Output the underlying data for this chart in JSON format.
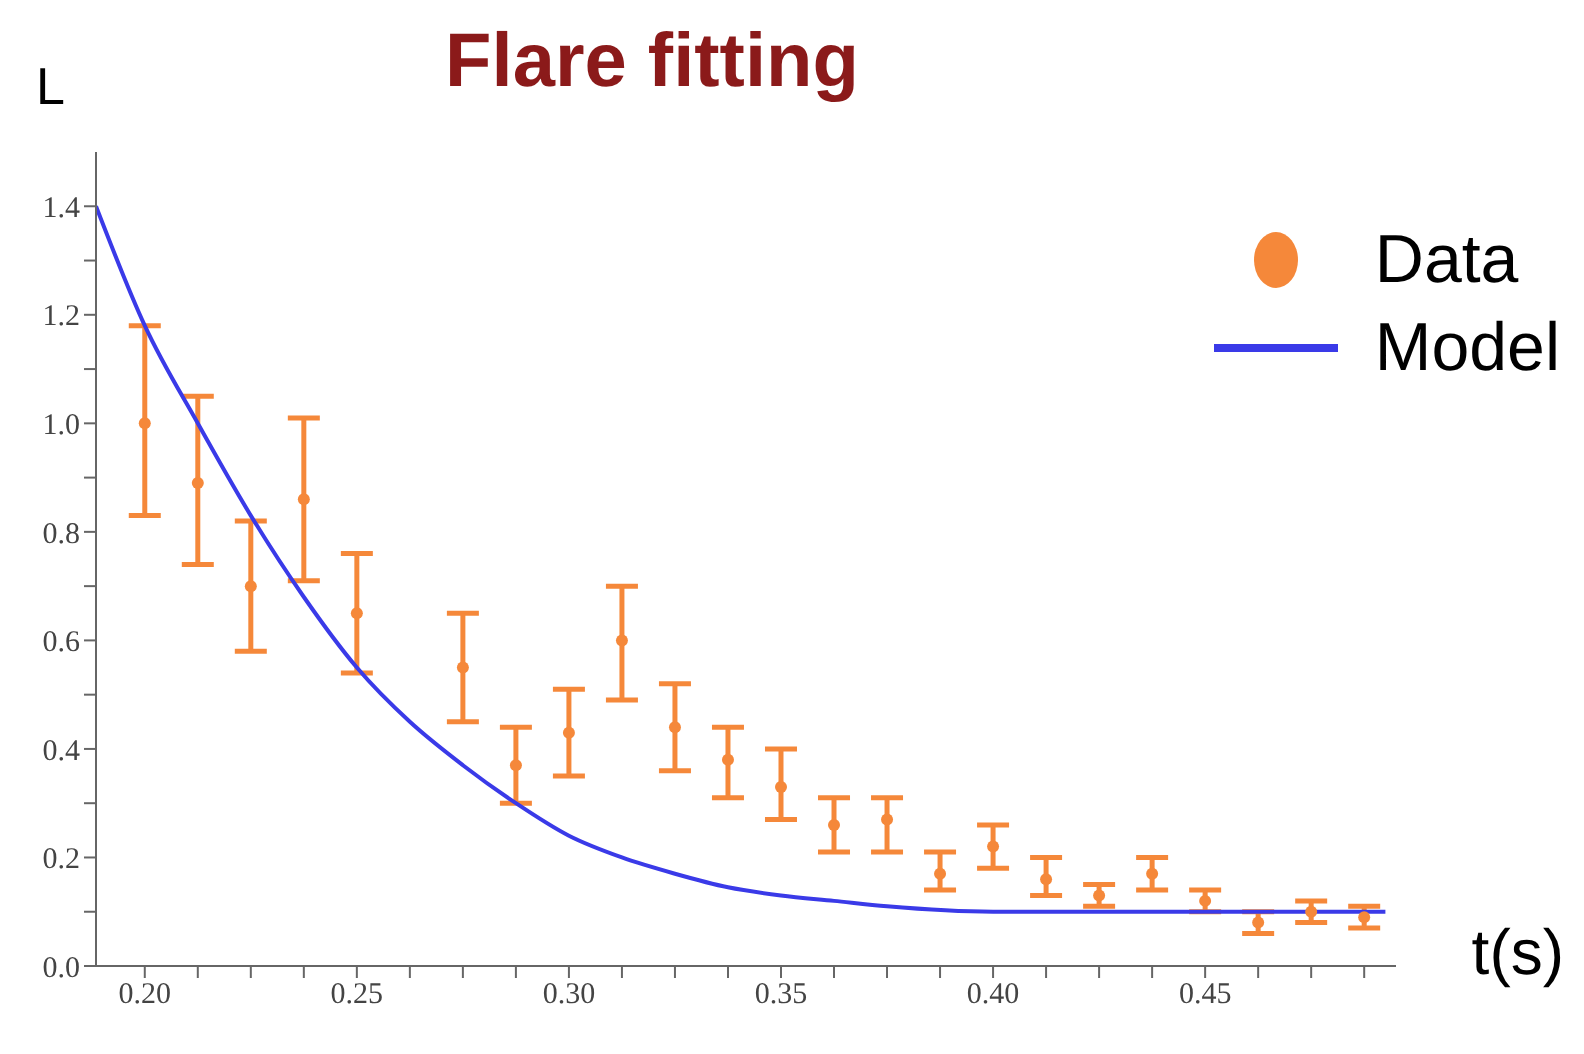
{
  "chart_data": {
    "type": "scatter",
    "title": "Flare fitting",
    "xlabel": "t(s)",
    "ylabel": "L",
    "xlim": [
      0.1885,
      0.495
    ],
    "ylim": [
      0,
      1.5
    ],
    "xticks": [
      {
        "value": 0.2,
        "label": "0.20"
      },
      {
        "value": 0.2125,
        "label": null
      },
      {
        "value": 0.225,
        "label": null
      },
      {
        "value": 0.2375,
        "label": null
      },
      {
        "value": 0.25,
        "label": "0.25"
      },
      {
        "value": 0.2625,
        "label": null
      },
      {
        "value": 0.275,
        "label": null
      },
      {
        "value": 0.2875,
        "label": null
      },
      {
        "value": 0.3,
        "label": "0.30"
      },
      {
        "value": 0.3125,
        "label": null
      },
      {
        "value": 0.325,
        "label": null
      },
      {
        "value": 0.3375,
        "label": null
      },
      {
        "value": 0.35,
        "label": "0.35"
      },
      {
        "value": 0.3625,
        "label": null
      },
      {
        "value": 0.375,
        "label": null
      },
      {
        "value": 0.3875,
        "label": null
      },
      {
        "value": 0.4,
        "label": "0.40"
      },
      {
        "value": 0.4125,
        "label": null
      },
      {
        "value": 0.425,
        "label": null
      },
      {
        "value": 0.4375,
        "label": null
      },
      {
        "value": 0.45,
        "label": "0.45"
      },
      {
        "value": 0.4625,
        "label": null
      },
      {
        "value": 0.475,
        "label": null
      },
      {
        "value": 0.4875,
        "label": null
      }
    ],
    "yticks": [
      {
        "value": 0,
        "label": "0.0"
      },
      {
        "value": 0.1,
        "label": null
      },
      {
        "value": 0.2,
        "label": "0.2"
      },
      {
        "value": 0.3,
        "label": null
      },
      {
        "value": 0.4,
        "label": "0.4"
      },
      {
        "value": 0.5,
        "label": null
      },
      {
        "value": 0.6,
        "label": "0.6"
      },
      {
        "value": 0.7,
        "label": null
      },
      {
        "value": 0.8,
        "label": "0.8"
      },
      {
        "value": 0.9,
        "label": null
      },
      {
        "value": 1,
        "label": "1.0"
      },
      {
        "value": 1.1,
        "label": null
      },
      {
        "value": 1.2,
        "label": "1.2"
      },
      {
        "value": 1.3,
        "label": null
      },
      {
        "value": 1.4,
        "label": "1.4"
      }
    ],
    "grid": false,
    "legend": "top right",
    "series": [
      {
        "name": "Data",
        "marker": "circle",
        "color": "#f5883a",
        "x": [
          0.2,
          0.2125,
          0.225,
          0.2375,
          0.25,
          0.275,
          0.2875,
          0.3,
          0.3125,
          0.325,
          0.3375,
          0.35,
          0.3625,
          0.375,
          0.3875,
          0.4,
          0.4125,
          0.425,
          0.4375,
          0.45,
          0.4625,
          0.475,
          0.4875
        ],
        "values": [
          1.0,
          0.89,
          0.7,
          0.86,
          0.65,
          0.55,
          0.37,
          0.43,
          0.6,
          0.44,
          0.38,
          0.33,
          0.26,
          0.27,
          0.17,
          0.22,
          0.16,
          0.13,
          0.17,
          0.12,
          0.08,
          0.1,
          0.09
        ],
        "errors": [
          [
            0.83,
            1.18
          ],
          [
            0.74,
            1.05
          ],
          [
            0.58,
            0.82
          ],
          [
            0.71,
            1.01
          ],
          [
            0.54,
            0.76
          ],
          [
            0.45,
            0.65
          ],
          [
            0.3,
            0.44
          ],
          [
            0.35,
            0.51
          ],
          [
            0.49,
            0.7
          ],
          [
            0.36,
            0.52
          ],
          [
            0.31,
            0.44
          ],
          [
            0.27,
            0.4
          ],
          [
            0.21,
            0.31
          ],
          [
            0.21,
            0.31
          ],
          [
            0.14,
            0.21
          ],
          [
            0.18,
            0.26
          ],
          [
            0.13,
            0.2
          ],
          [
            0.11,
            0.15
          ],
          [
            0.14,
            0.2
          ],
          [
            0.1,
            0.14
          ],
          [
            0.06,
            0.1
          ],
          [
            0.08,
            0.12
          ],
          [
            0.07,
            0.11
          ]
        ]
      },
      {
        "name": "Model",
        "type": "line",
        "marker": "none",
        "line_style": "solid",
        "color": "#3a3ae8",
        "x": [
          0.1885,
          0.2,
          0.2125,
          0.225,
          0.2375,
          0.25,
          0.2625,
          0.275,
          0.2875,
          0.3,
          0.3125,
          0.325,
          0.3375,
          0.35,
          0.3625,
          0.375,
          0.4,
          0.45,
          0.4925
        ],
        "values": [
          1.4,
          1.18,
          1.0,
          0.83,
          0.68,
          0.55,
          0.45,
          0.37,
          0.3,
          0.24,
          0.2,
          0.17,
          0.145,
          0.13,
          0.12,
          0.11,
          0.1,
          0.1,
          0.1
        ]
      }
    ]
  }
}
